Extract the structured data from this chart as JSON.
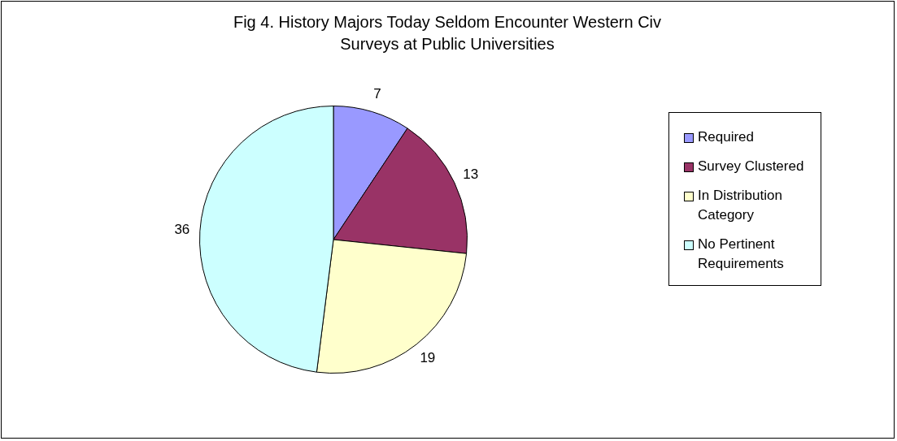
{
  "chart_data": {
    "type": "pie",
    "title": "Fig 4. History Majors Today Seldom Encounter Western Civ Surveys at Public Universities",
    "categories": [
      "Required",
      "Survey Clustered",
      "In Distribution Category",
      "No Pertinent Requirements"
    ],
    "values": [
      7,
      13,
      19,
      36
    ],
    "colors": [
      "#9999ff",
      "#993366",
      "#ffffcc",
      "#ccffff"
    ],
    "data_labels": true,
    "legend": "right"
  }
}
